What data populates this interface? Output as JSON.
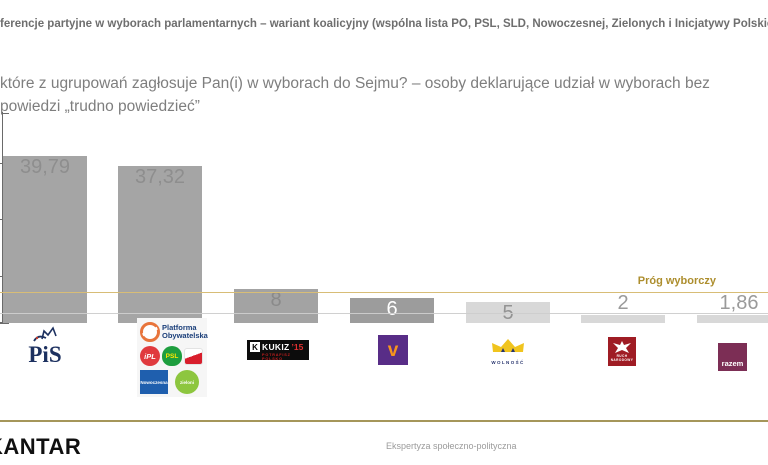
{
  "header": {
    "title": "ferencje partyjne w wyborach parlamentarnych – wariant koalicyjny (wspólna lista PO, PSL, SLD, Nowoczesnej, Zielonych i Inicjatywy Polskiej)",
    "subtitle_line1": "które z ugrupowań zagłosuje Pan(i) w wyborach do Sejmu? – osoby deklarujące udział w wyborach bez",
    "subtitle_line2": "powiedzi „trudno powiedzieć”"
  },
  "chart_data": {
    "type": "bar",
    "title": "Preferencje partyjne w wyborach parlamentarnych – wariant koalicyjny",
    "categories": [
      "PiS",
      "Koalicja: Platforma Obywatelska, iPL, PSL, SLD, Nowoczesna, Zieloni",
      "Kukiz'15",
      "Wiosna",
      "Wolność",
      "Ruch Narodowy",
      "Razem"
    ],
    "values": [
      39.79,
      37.32,
      8,
      6,
      5,
      2,
      1.86
    ],
    "value_labels": [
      "39,79",
      "37,32",
      "8",
      "6",
      "5",
      "2",
      "1,86"
    ],
    "bar_colors": [
      "#a5a5a5",
      "#a5a5a5",
      "#a3a3a3",
      "#9c9c9c",
      "#d8d8d8",
      "#d8d8d8",
      "#d8d8d8"
    ],
    "label_colors": [
      "#8e8e8e",
      "#8e8e8e",
      "#8a8a8a",
      "#ffffff",
      "#939393",
      "#9a9a9a",
      "#9a9a9a"
    ],
    "threshold": {
      "value": 5,
      "label": "Próg wyborczy",
      "label_color": "#ad8e2e",
      "line_color": "#d8bd76"
    },
    "ylim": [
      0,
      45
    ],
    "grid": false,
    "legend": "party logos below bars",
    "xlabel": "",
    "ylabel": ""
  },
  "logos": {
    "pis": {
      "text": "PiS"
    },
    "coalition": {
      "po_line1": "Platforma",
      "po_line2": "Obywatelska",
      "ipl": "iPL",
      "psl": "PSL",
      "nowoczesna": "Nowoczesna",
      "zieloni": "zieloni"
    },
    "kukiz": {
      "k": "K",
      "name": "KUKIZ",
      "year": "’15",
      "slogan": "POTRAFISZ POLSKO"
    },
    "wiosna": {
      "v": "v"
    },
    "wolnosc": {
      "text": "WOLNOŚĆ"
    },
    "ruch": {
      "line1": "RUCH",
      "line2": "NARODOWY"
    },
    "razem": {
      "text": "razem"
    }
  },
  "footer": {
    "brand": "KANTAR",
    "note": "Ekspertyza społeczno-polityczna"
  }
}
